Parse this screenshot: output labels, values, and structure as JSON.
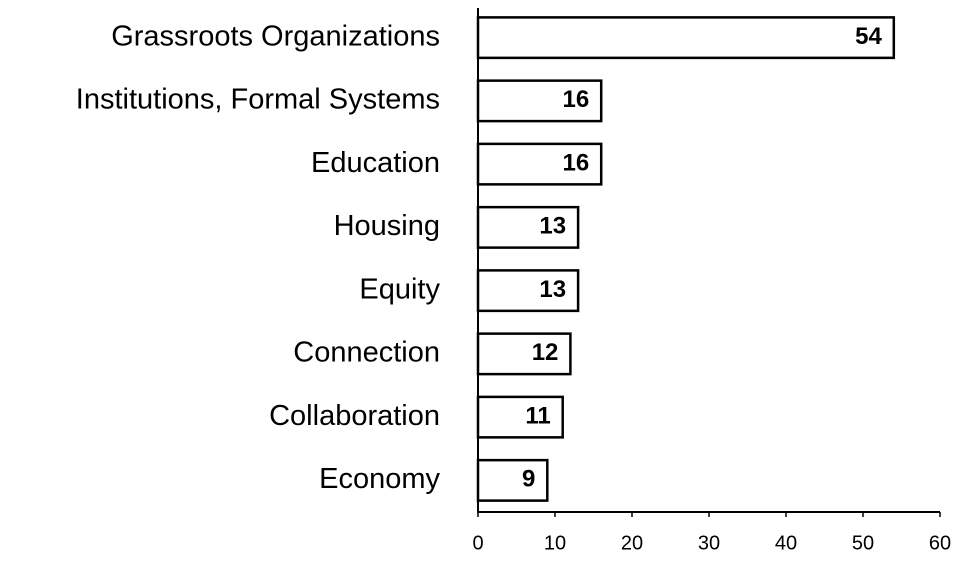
{
  "chart_data": {
    "type": "bar",
    "orientation": "horizontal",
    "categories": [
      "Grassroots Organizations",
      "Institutions, Formal Systems",
      "Education",
      "Housing",
      "Equity",
      "Connection",
      "Collaboration",
      "Economy"
    ],
    "values": [
      54,
      16,
      16,
      13,
      13,
      12,
      11,
      9
    ],
    "color": "#ffffff",
    "edgecolor": "#000000",
    "xlim": [
      0,
      60
    ],
    "xticks": [
      0,
      10,
      20,
      30,
      40,
      50,
      60
    ],
    "grid": false
  }
}
